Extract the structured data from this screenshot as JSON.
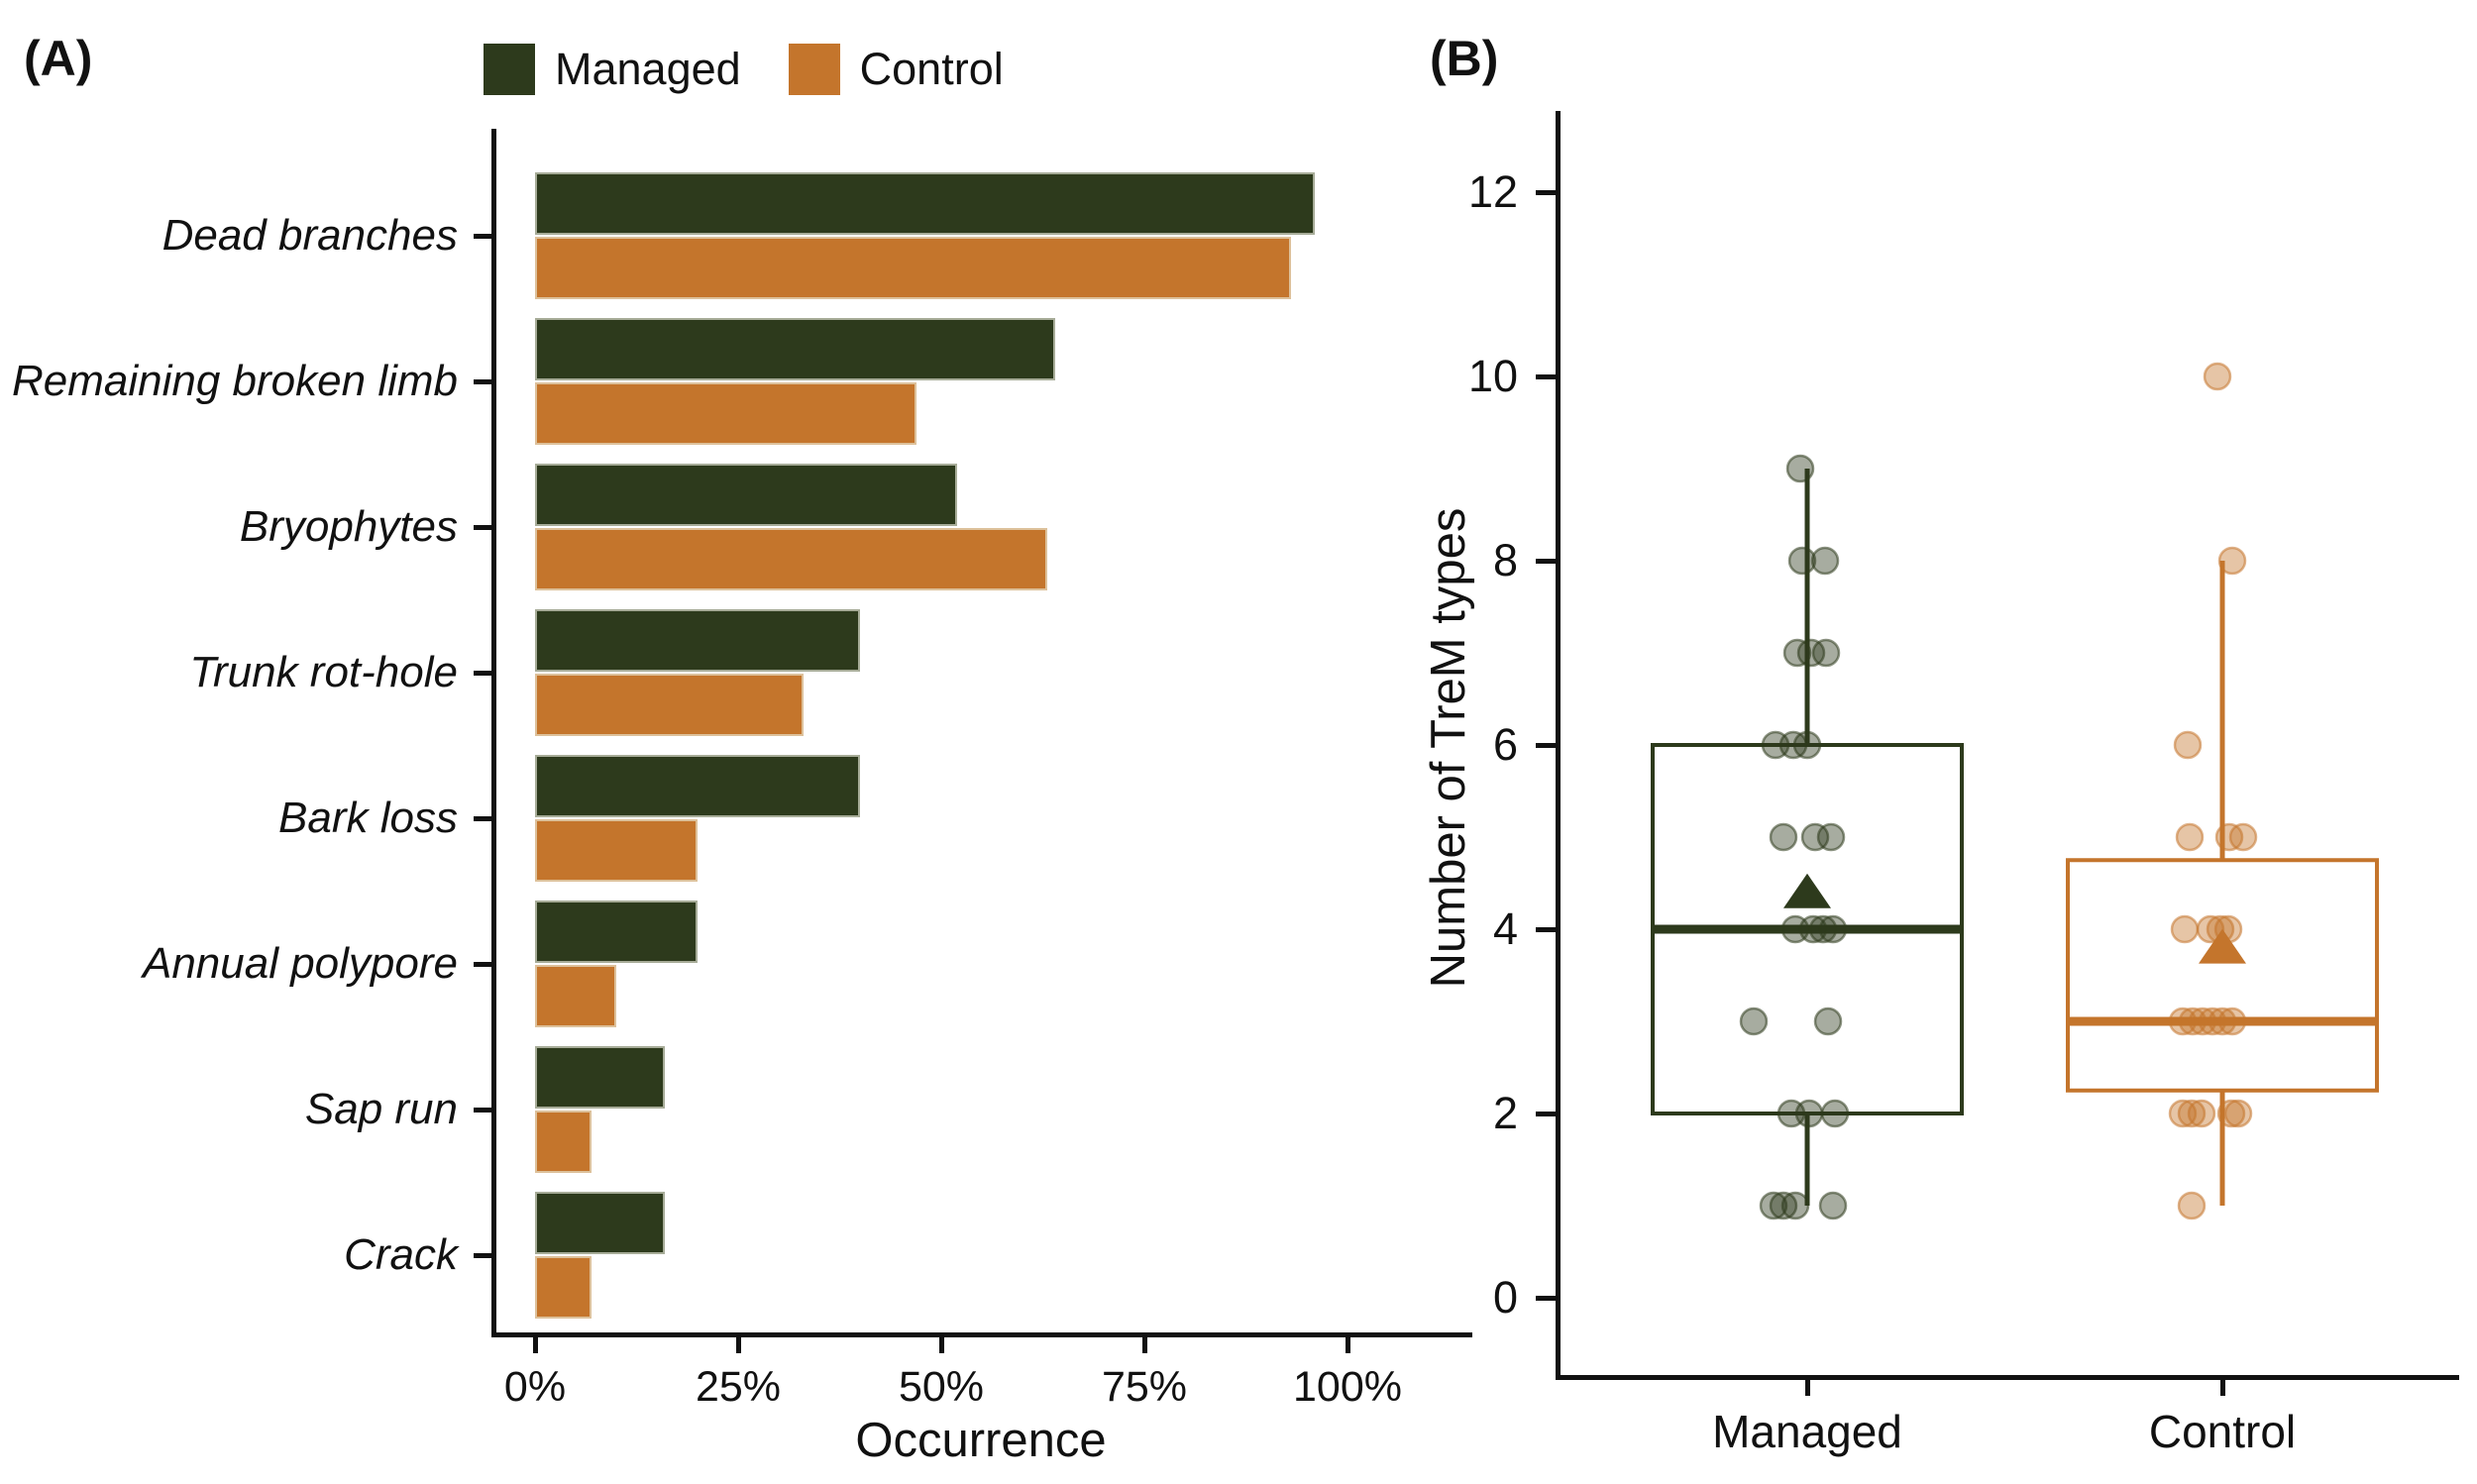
{
  "panel_tags": {
    "a": "(A)",
    "b": "(B)"
  },
  "colors": {
    "managed": "#2d3a1c",
    "control": "#c4752c",
    "axis": "#111111"
  },
  "chart_data": [
    {
      "type": "bar",
      "panel": "A",
      "orientation": "horizontal",
      "title": "",
      "xlabel": "Occurrence",
      "ylabel": "",
      "x_tick_labels": [
        "0%",
        "25%",
        "50%",
        "75%",
        "100%"
      ],
      "x_tick_values": [
        0,
        25,
        50,
        75,
        100
      ],
      "xlim": [
        0,
        107
      ],
      "grid": false,
      "legend_position": "top",
      "units": "percent occurrence",
      "categories": [
        "Dead branches",
        "Remaining broken limb",
        "Bryophytes",
        "Trunk rot-hole",
        "Bark loss",
        "Annual polypore",
        "Sap run",
        "Crack"
      ],
      "series": [
        {
          "name": "Managed",
          "color": "#2d3a1c",
          "values": [
            96,
            64,
            52,
            40,
            40,
            20,
            16,
            16
          ]
        },
        {
          "name": "Control",
          "color": "#c4752c",
          "values": [
            93,
            47,
            63,
            33,
            20,
            10,
            7,
            7
          ]
        }
      ]
    },
    {
      "type": "boxplot",
      "panel": "B",
      "title": "",
      "xlabel": "",
      "ylabel": "Number of TreM types",
      "y_ticks": [
        0,
        2,
        4,
        6,
        8,
        10,
        12
      ],
      "ylim": [
        -0.9,
        12.8
      ],
      "grid": false,
      "categories": [
        "Managed",
        "Control"
      ],
      "groups": [
        {
          "name": "Managed",
          "color": "#2d3a1c",
          "box": {
            "q1": 2,
            "median": 4,
            "q3": 6,
            "whisker_low": 1,
            "whisker_high": 9,
            "mean": 4.4
          },
          "points": [
            9,
            8,
            8,
            7,
            7,
            7,
            6,
            6,
            6,
            5,
            5,
            5,
            4,
            4,
            4,
            4,
            3,
            3,
            2,
            2,
            2,
            1,
            1,
            1,
            1
          ],
          "jitter_dx": [
            -7,
            -5,
            18,
            -10,
            4,
            19,
            -32,
            -14,
            0,
            -24,
            8,
            24,
            -12,
            6,
            16,
            26,
            -54,
            21,
            -16,
            2,
            28,
            -34,
            -24,
            -12,
            26
          ]
        },
        {
          "name": "Control",
          "color": "#c4752c",
          "box": {
            "q1": 2.25,
            "median": 3,
            "q3": 4.75,
            "whisker_low": 1,
            "whisker_high": 8,
            "mean": 3.8
          },
          "points": [
            10,
            8,
            6,
            5,
            5,
            5,
            4,
            4,
            4,
            4,
            3,
            3,
            3,
            3,
            3,
            3,
            2,
            2,
            2,
            2,
            2,
            1
          ],
          "jitter_dx": [
            -5,
            10,
            -35,
            -33,
            7,
            21,
            -38,
            -12,
            -2,
            6,
            -40,
            -30,
            -20,
            -10,
            0,
            10,
            -40,
            -31,
            -21,
            9,
            16,
            -31
          ]
        }
      ]
    }
  ]
}
